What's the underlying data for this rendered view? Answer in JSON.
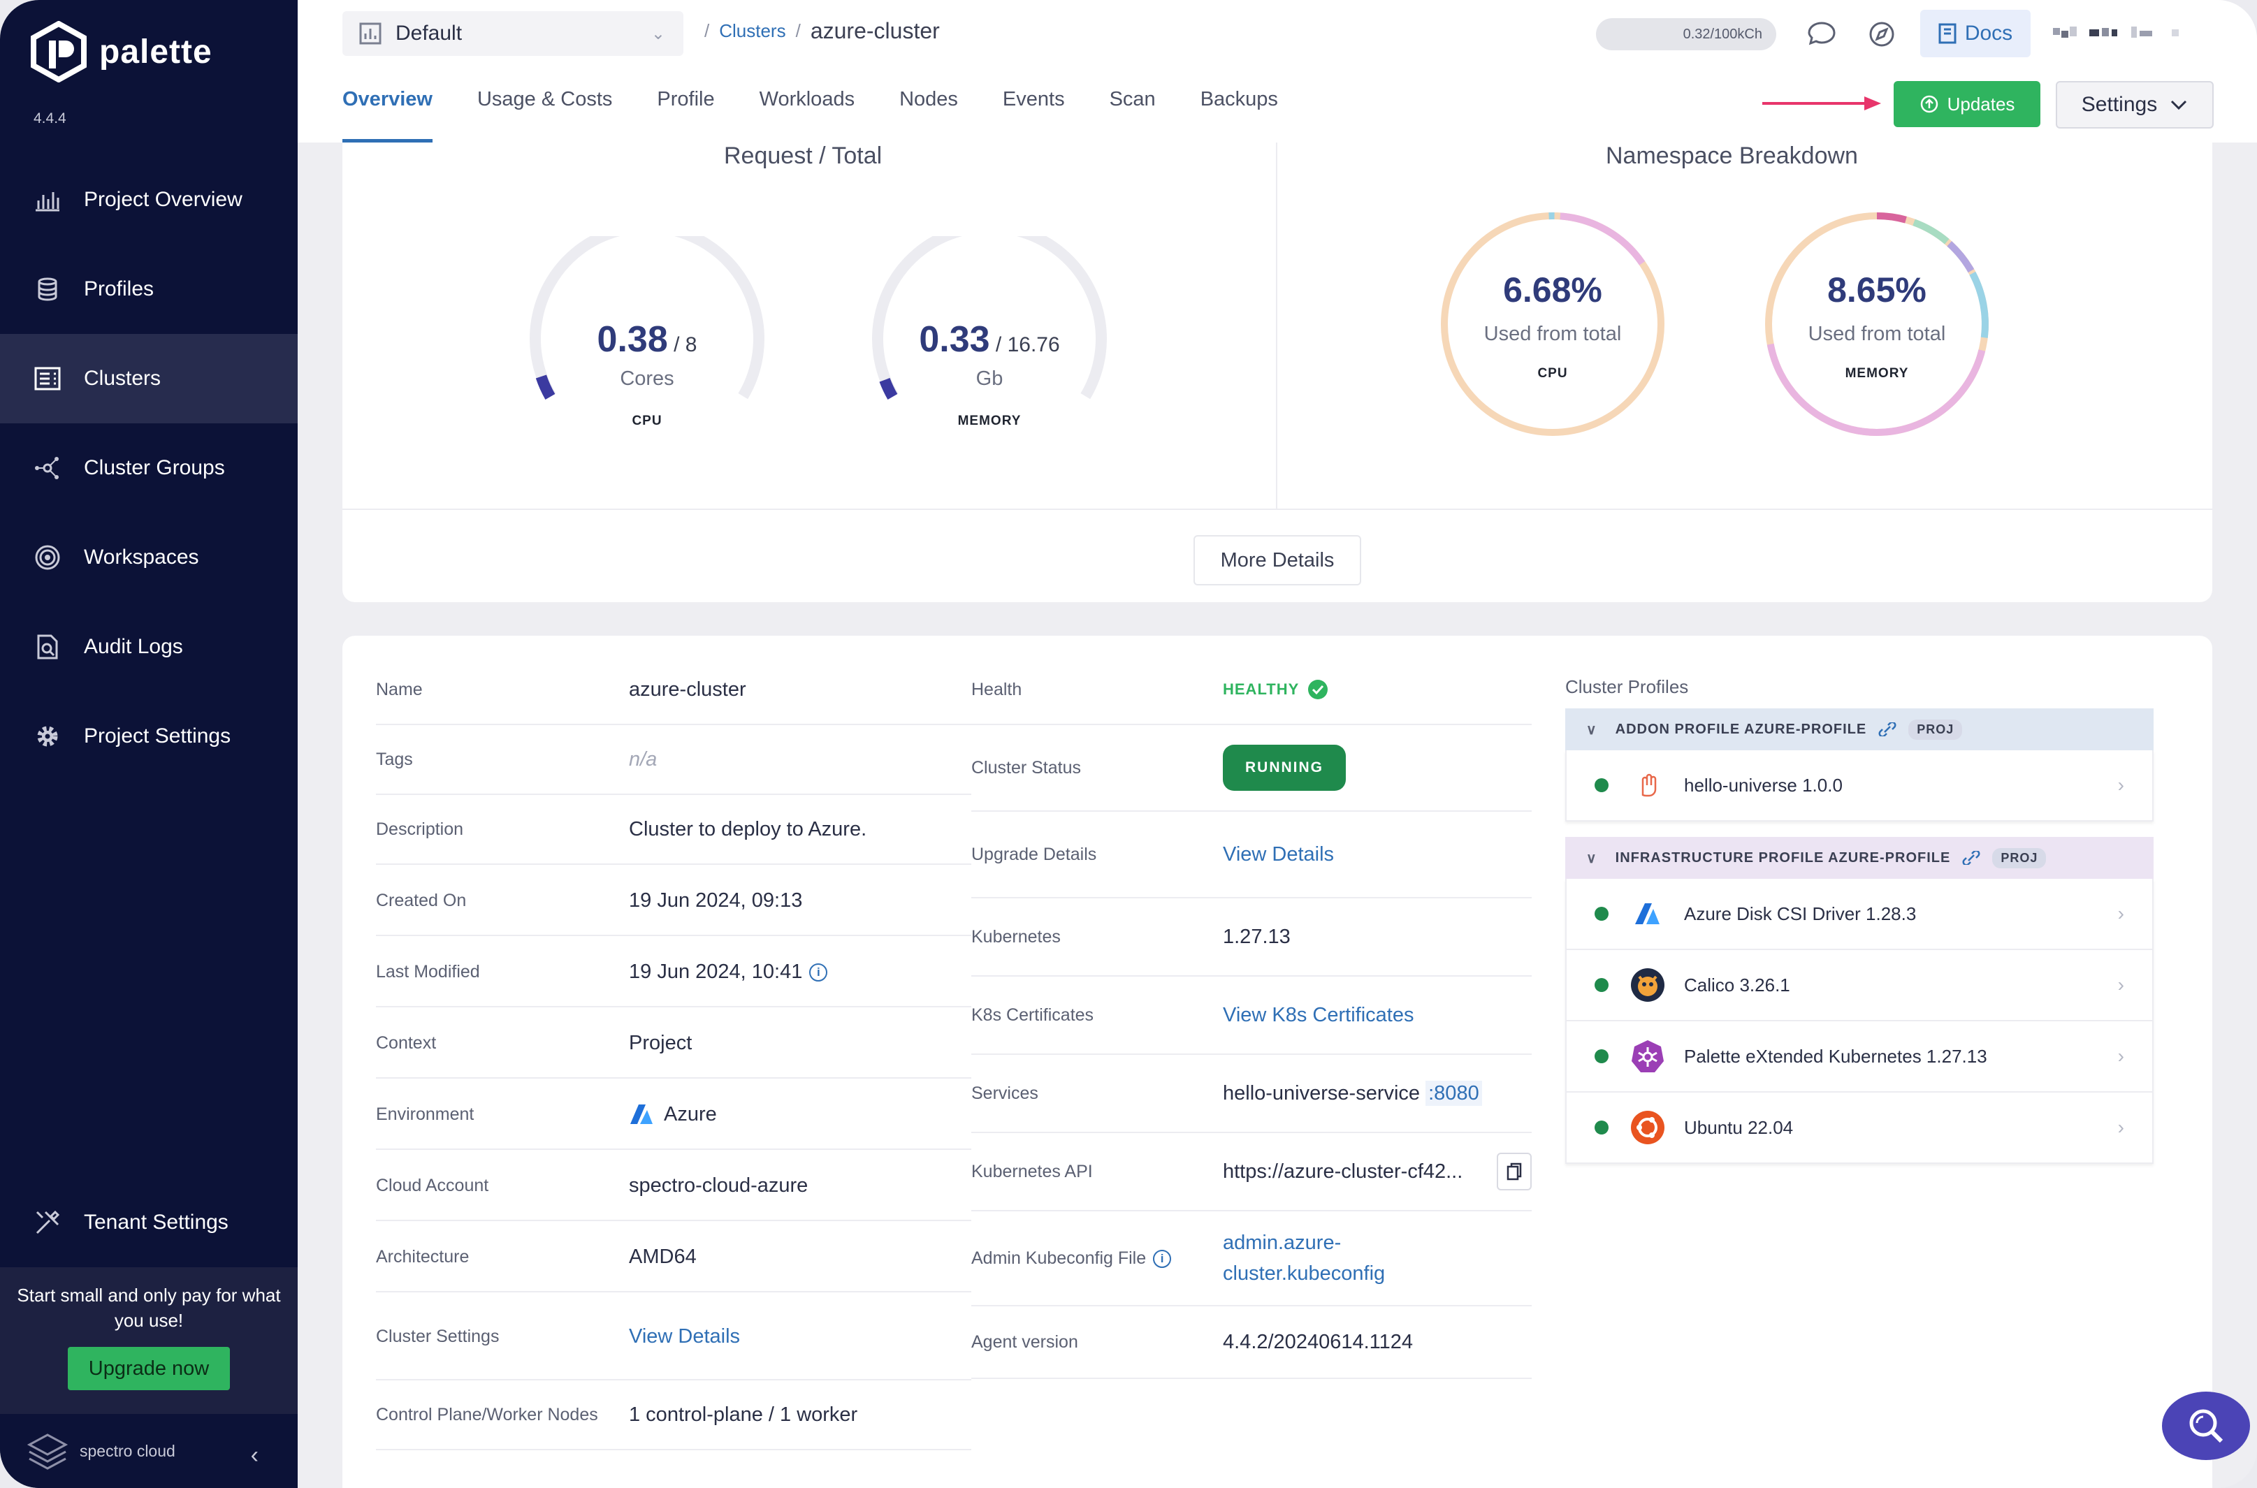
{
  "app": {
    "name": "palette",
    "version": "4.4.4"
  },
  "sidebar": {
    "items": [
      {
        "label": "Project Overview",
        "icon": "chart-icon"
      },
      {
        "label": "Profiles",
        "icon": "stack-icon"
      },
      {
        "label": "Clusters",
        "icon": "clusters-icon",
        "active": true
      },
      {
        "label": "Cluster Groups",
        "icon": "network-icon"
      },
      {
        "label": "Workspaces",
        "icon": "target-icon"
      },
      {
        "label": "Audit Logs",
        "icon": "document-search-icon"
      },
      {
        "label": "Project Settings",
        "icon": "gear-icon"
      }
    ],
    "tenant_settings": "Tenant Settings",
    "promo_text": "Start small and only pay for what you use!",
    "upgrade_label": "Upgrade now",
    "footer_brand": "spectro cloud"
  },
  "header": {
    "project": "Default",
    "breadcrumb_link": "Clusters",
    "breadcrumb_current": "azure-cluster",
    "credits": "0.32/100kCh",
    "docs_label": "Docs",
    "tabs": [
      "Overview",
      "Usage & Costs",
      "Profile",
      "Workloads",
      "Nodes",
      "Events",
      "Scan",
      "Backups"
    ],
    "active_tab": "Overview",
    "updates_label": "Updates",
    "settings_label": "Settings"
  },
  "usage": {
    "request_title": "Request / Total",
    "namespace_title": "Namespace Breakdown",
    "cpu": {
      "used": "0.38",
      "total": "/ 8",
      "unit": "Cores",
      "kind": "CPU",
      "fraction": 0.0475
    },
    "memory": {
      "used": "0.33",
      "total": "/ 16.76",
      "unit": "Gb",
      "kind": "MEMORY",
      "fraction": 0.0197
    },
    "ns_cpu": {
      "pct": "6.68%",
      "sub": "Used from total",
      "kind": "CPU"
    },
    "ns_memory": {
      "pct": "8.65%",
      "sub": "Used from total",
      "kind": "MEMORY"
    },
    "more_details": "More Details"
  },
  "details": {
    "name_label": "Name",
    "name": "azure-cluster",
    "tags_label": "Tags",
    "tags": "n/a",
    "description_label": "Description",
    "description": "Cluster to deploy to Azure.",
    "created_label": "Created On",
    "created": "19 Jun 2024, 09:13",
    "modified_label": "Last Modified",
    "modified": "19 Jun 2024, 10:41",
    "context_label": "Context",
    "context": "Project",
    "environment_label": "Environment",
    "environment": "Azure",
    "account_label": "Cloud Account",
    "account": "spectro-cloud-azure",
    "arch_label": "Architecture",
    "arch": "AMD64",
    "cluster_settings_label": "Cluster Settings",
    "cluster_settings": "View Details",
    "nodes_label": "Control Plane/Worker Nodes",
    "nodes": "1 control-plane / 1 worker",
    "health_label": "Health",
    "health": "HEALTHY",
    "status_label": "Cluster Status",
    "status": "RUNNING",
    "upgrade_label": "Upgrade Details",
    "upgrade": "View Details",
    "k8s_label": "Kubernetes",
    "k8s": "1.27.13",
    "certs_label": "K8s Certificates",
    "certs": "View K8s Certificates",
    "services_label": "Services",
    "services": "hello-universe-service",
    "services_port": ":8080",
    "api_label": "Kubernetes API",
    "api": "https://azure-cluster-cf42...",
    "kubeconfig_label": "Admin Kubeconfig File",
    "kubeconfig_line1": "admin.azure-",
    "kubeconfig_line2": "cluster.kubeconfig",
    "agent_label": "Agent version",
    "agent": "4.4.2/20240614.1124"
  },
  "profiles": {
    "title": "Cluster Profiles",
    "addon": {
      "label": "ADDON PROFILE AZURE-PROFILE",
      "badge": "PROJ",
      "packs": [
        {
          "name": "hello-universe 1.0.0",
          "icon": "hand-icon"
        }
      ]
    },
    "infra": {
      "label": "INFRASTRUCTURE PROFILE AZURE-PROFILE",
      "badge": "PROJ",
      "packs": [
        {
          "name": "Azure Disk CSI Driver 1.28.3",
          "icon": "azure-icon"
        },
        {
          "name": "Calico 3.26.1",
          "icon": "calico-icon"
        },
        {
          "name": "Palette eXtended Kubernetes 1.27.13",
          "icon": "kubernetes-icon"
        },
        {
          "name": "Ubuntu 22.04",
          "icon": "ubuntu-icon"
        }
      ]
    }
  },
  "colors": {
    "accent": "#2f6fb5",
    "success": "#2fb45f",
    "sidebar": "#0c1237",
    "gauge": "#3b3aa0"
  }
}
